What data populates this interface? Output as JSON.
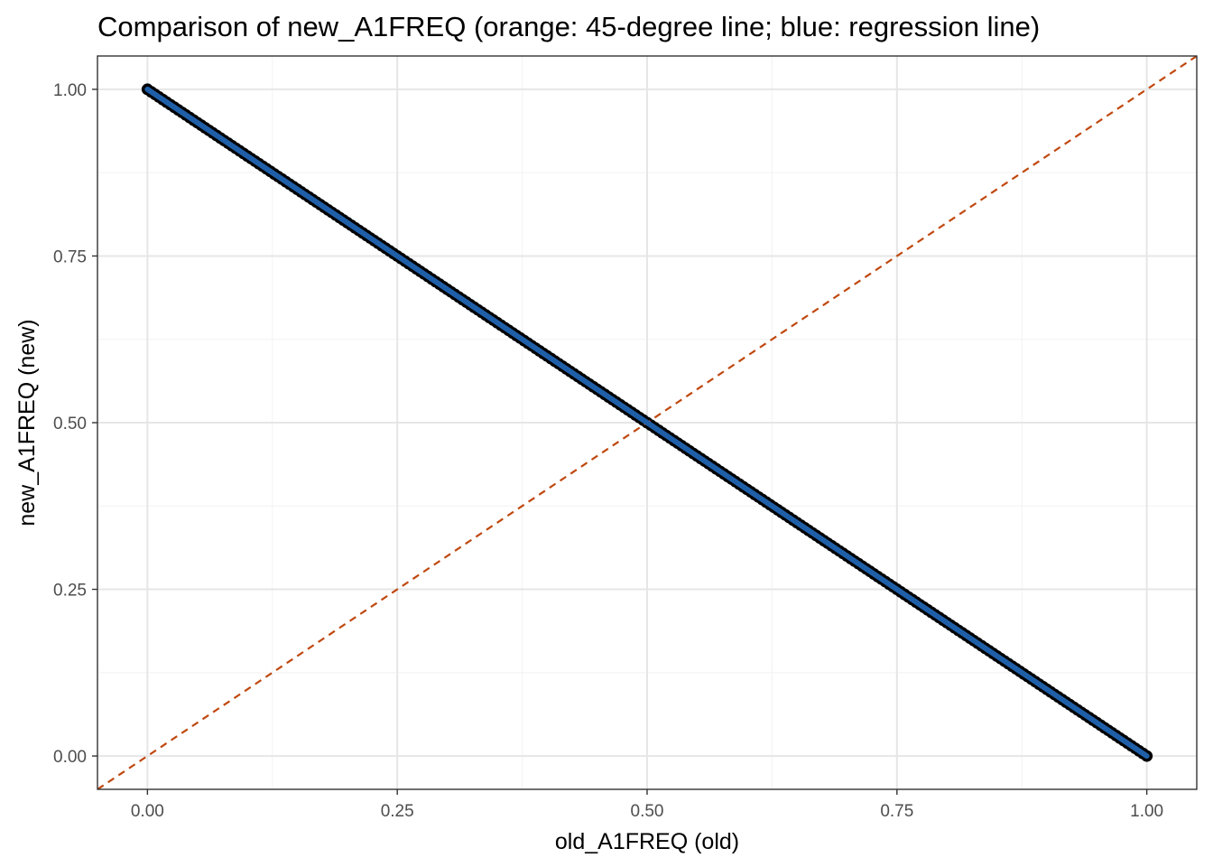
{
  "chart_data": {
    "type": "scatter",
    "title": "Comparison of new_A1FREQ (orange: 45-degree line; blue: regression line)",
    "xlabel": "old_A1FREQ (old)",
    "ylabel": "new_A1FREQ (new)",
    "xlim": [
      -0.05,
      1.05
    ],
    "ylim": [
      -0.05,
      1.05
    ],
    "x_ticks": [
      0,
      0.25,
      0.5,
      0.75,
      1
    ],
    "x_tick_labels": [
      "0.00",
      "0.25",
      "0.50",
      "0.75",
      "1.00"
    ],
    "y_ticks": [
      0,
      0.25,
      0.5,
      0.75,
      1
    ],
    "y_tick_labels": [
      "0.00",
      "0.25",
      "0.50",
      "0.75",
      "1.00"
    ],
    "minor_x_ticks": [
      0.125,
      0.375,
      0.625,
      0.875
    ],
    "minor_y_ticks": [
      0.125,
      0.375,
      0.625,
      0.875
    ],
    "grid": true,
    "series": [
      {
        "type": "points",
        "x_range": [
          0,
          1
        ],
        "relation": "y = 1 - x",
        "color": "#000000"
      }
    ],
    "reference_lines": [
      {
        "kind": "identity",
        "slope": 1,
        "intercept": 0,
        "style": "dashed",
        "color": "#c0480f"
      },
      {
        "kind": "regression",
        "slope": -1,
        "intercept": 1,
        "style": "solid",
        "color": "#1f5fa8"
      }
    ]
  },
  "colors": {
    "panel_border": "#333333",
    "grid_major": "#e6e6e6",
    "grid_minor": "#f2f2f2",
    "points": "#000000",
    "identity_line": "#c0480f",
    "regression_line": "#1f5fa8"
  }
}
